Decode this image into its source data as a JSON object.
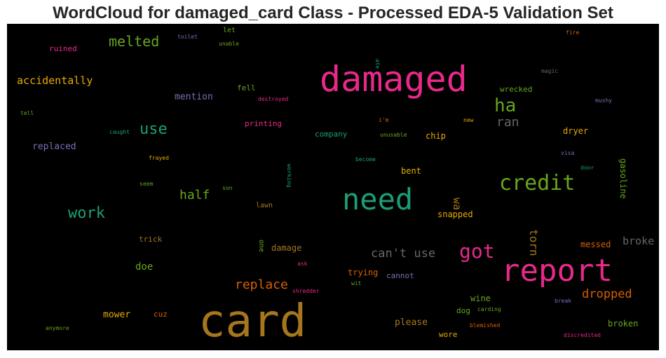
{
  "title": "WordCloud for damaged_card Class - Processed EDA-5 Validation Set",
  "chart_data": {
    "type": "wordcloud",
    "title": "WordCloud for damaged_card Class - Processed EDA-5 Validation Set",
    "background": "#000000",
    "words": [
      {
        "text": "card",
        "size": 64,
        "color": "#a6761d"
      },
      {
        "text": "damaged",
        "size": 50,
        "color": "#e7298a"
      },
      {
        "text": "report",
        "size": 44,
        "color": "#e7298a"
      },
      {
        "text": "need",
        "size": 42,
        "color": "#1b9e77"
      },
      {
        "text": "credit",
        "size": 30,
        "color": "#66a61e"
      },
      {
        "text": "got",
        "size": 28,
        "color": "#e7298a"
      },
      {
        "text": "ha",
        "size": 26,
        "color": "#66a61e"
      },
      {
        "text": "use",
        "size": 22,
        "color": "#1b9e77"
      },
      {
        "text": "work",
        "size": 22,
        "color": "#1b9e77"
      },
      {
        "text": "melted",
        "size": 20,
        "color": "#66a61e"
      },
      {
        "text": "replace",
        "size": 18,
        "color": "#d95f02"
      },
      {
        "text": "half",
        "size": 18,
        "color": "#66a61e"
      },
      {
        "text": "ran",
        "size": 18,
        "color": "#666666"
      },
      {
        "text": "can't use",
        "size": 17,
        "color": "#666666"
      },
      {
        "text": "dropped",
        "size": 17,
        "color": "#d95f02"
      },
      {
        "text": "torn",
        "size": 16,
        "color": "#a6761d"
      },
      {
        "text": "accidentally",
        "size": 15,
        "color": "#e6ab02"
      },
      {
        "text": "broke",
        "size": 15,
        "color": "#666666"
      },
      {
        "text": "wa",
        "size": 15,
        "color": "#a6761d"
      },
      {
        "text": "doe",
        "size": 14,
        "color": "#66a61e"
      },
      {
        "text": "mention",
        "size": 13,
        "color": "#7570b3"
      },
      {
        "text": "replaced",
        "size": 13,
        "color": "#7570b3"
      },
      {
        "text": "please",
        "size": 13,
        "color": "#a6761d"
      },
      {
        "text": "mower",
        "size": 13,
        "color": "#e6ab02"
      },
      {
        "text": "damage",
        "size": 12,
        "color": "#a6761d"
      },
      {
        "text": "broken",
        "size": 12,
        "color": "#66a61e"
      },
      {
        "text": "messed",
        "size": 12,
        "color": "#d95f02"
      },
      {
        "text": "trying",
        "size": 12,
        "color": "#d95f02"
      },
      {
        "text": "snapped",
        "size": 12,
        "color": "#e6ab02"
      },
      {
        "text": "wine",
        "size": 12,
        "color": "#66a61e"
      },
      {
        "text": "bent",
        "size": 12,
        "color": "#e6ab02"
      },
      {
        "text": "chip",
        "size": 12,
        "color": "#e6ab02"
      },
      {
        "text": "dryer",
        "size": 12,
        "color": "#e6ab02"
      },
      {
        "text": "gasoline",
        "size": 12,
        "color": "#66a61e"
      },
      {
        "text": "cannot",
        "size": 11,
        "color": "#7570b3"
      },
      {
        "text": "wore",
        "size": 11,
        "color": "#e6ab02"
      },
      {
        "text": "printing",
        "size": 11,
        "color": "#e7298a"
      },
      {
        "text": "fell",
        "size": 11,
        "color": "#66a61e"
      },
      {
        "text": "wrecked",
        "size": 11,
        "color": "#66a61e"
      },
      {
        "text": "ruined",
        "size": 11,
        "color": "#e7298a"
      },
      {
        "text": "company",
        "size": 11,
        "color": "#1b9e77"
      },
      {
        "text": "cuz",
        "size": 11,
        "color": "#d95f02"
      },
      {
        "text": "dog",
        "size": 11,
        "color": "#66a61e"
      },
      {
        "text": "trick",
        "size": 11,
        "color": "#a6761d"
      },
      {
        "text": "lawn",
        "size": 10,
        "color": "#a6761d"
      },
      {
        "text": "let",
        "size": 10,
        "color": "#66a61e"
      },
      {
        "text": "one",
        "size": 10,
        "color": "#66a61e"
      },
      {
        "text": "ate",
        "size": 8,
        "color": "#1b9e77"
      },
      {
        "text": "fire",
        "size": 8,
        "color": "#d95f02"
      },
      {
        "text": "toilet",
        "size": 8,
        "color": "#7570b3"
      },
      {
        "text": "unable",
        "size": 8,
        "color": "#66a61e"
      },
      {
        "text": "magic",
        "size": 8,
        "color": "#666666"
      },
      {
        "text": "destroyed",
        "size": 8,
        "color": "#e7298a"
      },
      {
        "text": "mushy",
        "size": 8,
        "color": "#7570b3"
      },
      {
        "text": "tell",
        "size": 8,
        "color": "#66a61e"
      },
      {
        "text": "i'm",
        "size": 8,
        "color": "#d95f02"
      },
      {
        "text": "new",
        "size": 8,
        "color": "#e6ab02"
      },
      {
        "text": "caught",
        "size": 8,
        "color": "#1b9e77"
      },
      {
        "text": "unusable",
        "size": 8,
        "color": "#66a61e"
      },
      {
        "text": "frayed",
        "size": 8,
        "color": "#e6ab02"
      },
      {
        "text": "working",
        "size": 8,
        "color": "#1b9e77"
      },
      {
        "text": "become",
        "size": 8,
        "color": "#1b9e77"
      },
      {
        "text": "visa",
        "size": 8,
        "color": "#7570b3"
      },
      {
        "text": "door",
        "size": 8,
        "color": "#1b9e77"
      },
      {
        "text": "seem",
        "size": 8,
        "color": "#66a61e"
      },
      {
        "text": "son",
        "size": 8,
        "color": "#66a61e"
      },
      {
        "text": "ask",
        "size": 8,
        "color": "#e7298a"
      },
      {
        "text": "wit",
        "size": 8,
        "color": "#66a61e"
      },
      {
        "text": "shredder",
        "size": 8,
        "color": "#e7298a"
      },
      {
        "text": "break",
        "size": 8,
        "color": "#7570b3"
      },
      {
        "text": "carding",
        "size": 8,
        "color": "#66a61e"
      },
      {
        "text": "blemished",
        "size": 8,
        "color": "#d95f02"
      },
      {
        "text": "discredited",
        "size": 8,
        "color": "#e7298a"
      },
      {
        "text": "anymore",
        "size": 8,
        "color": "#66a61e"
      }
    ]
  }
}
